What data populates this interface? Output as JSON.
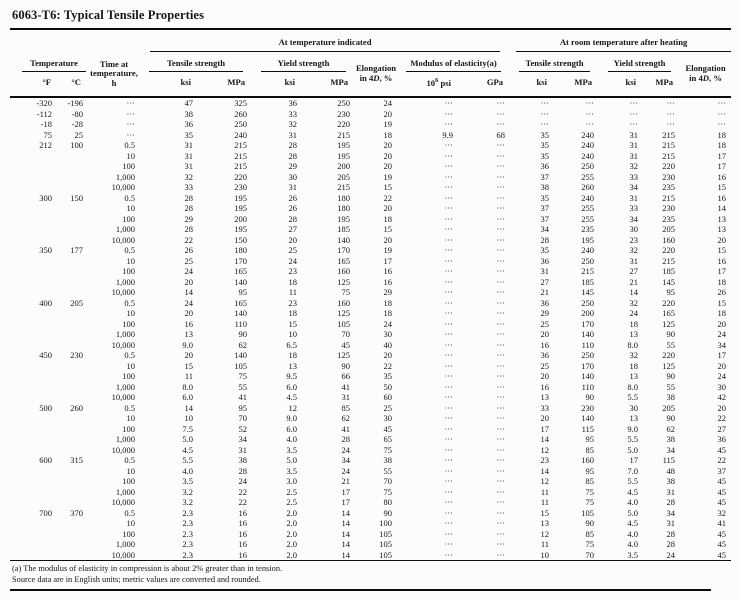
{
  "page_title": "6063-T6: Typical Tensile Properties",
  "colors": {
    "text": "#161616",
    "bg": "#fcfcfa",
    "rule": "#0d0d0d"
  },
  "table": {
    "header": {
      "at_temperature": "At temperature indicated",
      "at_room": "At room temperature after heating",
      "temperature": "Temperature",
      "deg_f": "°F",
      "deg_c": "°C",
      "time_l1": "Time at",
      "time_l2": "temperature, h",
      "tensile": "Tensile strength",
      "yield": "Yield strength",
      "elong_l1": "Elongation",
      "elong_pre": "in 4",
      "elong_d": "D",
      "elong_post": ", %",
      "modulus": "Modulus of elasticity(a)",
      "ksi": "ksi",
      "mpa": "MPa",
      "psi_base": "10",
      "psi_exp": "6",
      "psi_unit": "psi",
      "gpa": "GPa"
    },
    "rows": [
      [
        "-320",
        "-196",
        "···",
        "47",
        "325",
        "36",
        "250",
        "24",
        "···",
        "···",
        "···",
        "···",
        "···",
        "···",
        "···"
      ],
      [
        "-112",
        "-80",
        "···",
        "38",
        "260",
        "33",
        "230",
        "20",
        "···",
        "···",
        "···",
        "···",
        "···",
        "···",
        "···"
      ],
      [
        "-18",
        "-28",
        "···",
        "36",
        "250",
        "32",
        "220",
        "19",
        "···",
        "···",
        "···",
        "···",
        "···",
        "···",
        "···"
      ],
      [
        "75",
        "25",
        "···",
        "35",
        "240",
        "31",
        "215",
        "18",
        "9.9",
        "68",
        "35",
        "240",
        "31",
        "215",
        "18"
      ],
      [
        "212",
        "100",
        "0.5",
        "31",
        "215",
        "28",
        "195",
        "20",
        "···",
        "···",
        "35",
        "240",
        "31",
        "215",
        "18"
      ],
      [
        "",
        "",
        "10",
        "31",
        "215",
        "28",
        "195",
        "20",
        "···",
        "···",
        "35",
        "240",
        "31",
        "215",
        "17"
      ],
      [
        "",
        "",
        "100",
        "31",
        "215",
        "29",
        "200",
        "20",
        "···",
        "···",
        "36",
        "250",
        "32",
        "220",
        "17"
      ],
      [
        "",
        "",
        "1,000",
        "32",
        "220",
        "30",
        "205",
        "19",
        "···",
        "···",
        "37",
        "255",
        "33",
        "230",
        "16"
      ],
      [
        "",
        "",
        "10,000",
        "33",
        "230",
        "31",
        "215",
        "15",
        "···",
        "···",
        "38",
        "260",
        "34",
        "235",
        "15"
      ],
      [
        "300",
        "150",
        "0.5",
        "28",
        "195",
        "26",
        "180",
        "22",
        "···",
        "···",
        "35",
        "240",
        "31",
        "215",
        "16"
      ],
      [
        "",
        "",
        "10",
        "28",
        "195",
        "26",
        "180",
        "20",
        "···",
        "···",
        "37",
        "255",
        "33",
        "230",
        "14"
      ],
      [
        "",
        "",
        "100",
        "29",
        "200",
        "28",
        "195",
        "18",
        "···",
        "···",
        "37",
        "255",
        "34",
        "235",
        "13"
      ],
      [
        "",
        "",
        "1,000",
        "28",
        "195",
        "27",
        "185",
        "15",
        "···",
        "···",
        "34",
        "235",
        "30",
        "205",
        "13"
      ],
      [
        "",
        "",
        "10,000",
        "22",
        "150",
        "20",
        "140",
        "20",
        "···",
        "···",
        "28",
        "195",
        "23",
        "160",
        "20"
      ],
      [
        "350",
        "177",
        "0.5",
        "26",
        "180",
        "25",
        "170",
        "19",
        "···",
        "···",
        "35",
        "240",
        "32",
        "220",
        "15"
      ],
      [
        "",
        "",
        "10",
        "25",
        "170",
        "24",
        "165",
        "17",
        "···",
        "···",
        "36",
        "250",
        "31",
        "215",
        "16"
      ],
      [
        "",
        "",
        "100",
        "24",
        "165",
        "23",
        "160",
        "16",
        "···",
        "···",
        "31",
        "215",
        "27",
        "185",
        "17"
      ],
      [
        "",
        "",
        "1,000",
        "20",
        "140",
        "18",
        "125",
        "16",
        "···",
        "···",
        "27",
        "185",
        "21",
        "145",
        "18"
      ],
      [
        "",
        "",
        "10,000",
        "14",
        "95",
        "11",
        "75",
        "29",
        "···",
        "···",
        "21",
        "145",
        "14",
        "95",
        "26"
      ],
      [
        "400",
        "205",
        "0.5",
        "24",
        "165",
        "23",
        "160",
        "18",
        "···",
        "···",
        "36",
        "250",
        "32",
        "220",
        "15"
      ],
      [
        "",
        "",
        "10",
        "20",
        "140",
        "18",
        "125",
        "18",
        "···",
        "···",
        "29",
        "200",
        "24",
        "165",
        "18"
      ],
      [
        "",
        "",
        "100",
        "16",
        "110",
        "15",
        "105",
        "24",
        "···",
        "···",
        "25",
        "170",
        "18",
        "125",
        "20"
      ],
      [
        "",
        "",
        "1,000",
        "13",
        "90",
        "10",
        "70",
        "30",
        "···",
        "···",
        "20",
        "140",
        "13",
        "90",
        "24"
      ],
      [
        "",
        "",
        "10,000",
        "9.0",
        "62",
        "6.5",
        "45",
        "40",
        "···",
        "···",
        "16",
        "110",
        "8.0",
        "55",
        "34"
      ],
      [
        "450",
        "230",
        "0.5",
        "20",
        "140",
        "18",
        "125",
        "20",
        "···",
        "···",
        "36",
        "250",
        "32",
        "220",
        "17"
      ],
      [
        "",
        "",
        "10",
        "15",
        "105",
        "13",
        "90",
        "22",
        "···",
        "···",
        "25",
        "170",
        "18",
        "125",
        "20"
      ],
      [
        "",
        "",
        "100",
        "11",
        "75",
        "9.5",
        "66",
        "35",
        "···",
        "···",
        "20",
        "140",
        "13",
        "90",
        "24"
      ],
      [
        "",
        "",
        "1,000",
        "8.0",
        "55",
        "6.0",
        "41",
        "50",
        "···",
        "···",
        "16",
        "110",
        "8.0",
        "55",
        "30"
      ],
      [
        "",
        "",
        "10,000",
        "6.0",
        "41",
        "4.5",
        "31",
        "60",
        "···",
        "···",
        "13",
        "90",
        "5.5",
        "38",
        "42"
      ],
      [
        "500",
        "260",
        "0.5",
        "14",
        "95",
        "12",
        "85",
        "25",
        "···",
        "···",
        "33",
        "230",
        "30",
        "205",
        "20"
      ],
      [
        "",
        "",
        "10",
        "10",
        "70",
        "9.0",
        "62",
        "30",
        "···",
        "···",
        "20",
        "140",
        "13",
        "90",
        "22"
      ],
      [
        "",
        "",
        "100",
        "7.5",
        "52",
        "6.0",
        "41",
        "45",
        "···",
        "···",
        "17",
        "115",
        "9.0",
        "62",
        "27"
      ],
      [
        "",
        "",
        "1,000",
        "5.0",
        "34",
        "4.0",
        "28",
        "65",
        "···",
        "···",
        "14",
        "95",
        "5.5",
        "38",
        "36"
      ],
      [
        "",
        "",
        "10,000",
        "4.5",
        "31",
        "3.5",
        "24",
        "75",
        "···",
        "···",
        "12",
        "85",
        "5.0",
        "34",
        "45"
      ],
      [
        "600",
        "315",
        "0.5",
        "5.5",
        "38",
        "5.0",
        "34",
        "38",
        "···",
        "···",
        "23",
        "160",
        "17",
        "115",
        "22"
      ],
      [
        "",
        "",
        "10",
        "4.0",
        "28",
        "3.5",
        "24",
        "55",
        "···",
        "···",
        "14",
        "95",
        "7.0",
        "48",
        "37"
      ],
      [
        "",
        "",
        "100",
        "3.5",
        "24",
        "3.0",
        "21",
        "70",
        "···",
        "···",
        "12",
        "85",
        "5.5",
        "38",
        "45"
      ],
      [
        "",
        "",
        "1,000",
        "3.2",
        "22",
        "2.5",
        "17",
        "75",
        "···",
        "···",
        "11",
        "75",
        "4.5",
        "31",
        "45"
      ],
      [
        "",
        "",
        "10,000",
        "3.2",
        "22",
        "2.5",
        "17",
        "80",
        "···",
        "···",
        "11",
        "75",
        "4.0",
        "28",
        "45"
      ],
      [
        "700",
        "370",
        "0.5",
        "2.3",
        "16",
        "2.0",
        "14",
        "90",
        "···",
        "···",
        "15",
        "105",
        "5.0",
        "34",
        "32"
      ],
      [
        "",
        "",
        "10",
        "2.3",
        "16",
        "2.0",
        "14",
        "100",
        "···",
        "···",
        "13",
        "90",
        "4.5",
        "31",
        "41"
      ],
      [
        "",
        "",
        "100",
        "2.3",
        "16",
        "2.0",
        "14",
        "105",
        "···",
        "···",
        "12",
        "85",
        "4.0",
        "28",
        "45"
      ],
      [
        "",
        "",
        "1,000",
        "2.3",
        "16",
        "2.0",
        "14",
        "105",
        "···",
        "···",
        "11",
        "75",
        "4.0",
        "28",
        "45"
      ],
      [
        "",
        "",
        "10,000",
        "2.3",
        "16",
        "2.0",
        "14",
        "105",
        "···",
        "···",
        "10",
        "70",
        "3.5",
        "24",
        "45"
      ]
    ]
  },
  "footnotes": [
    "(a) The modulus of elasticity in compression is about 2% greater than in tension.",
    "Source data are in English units; metric values are converted and rounded."
  ]
}
